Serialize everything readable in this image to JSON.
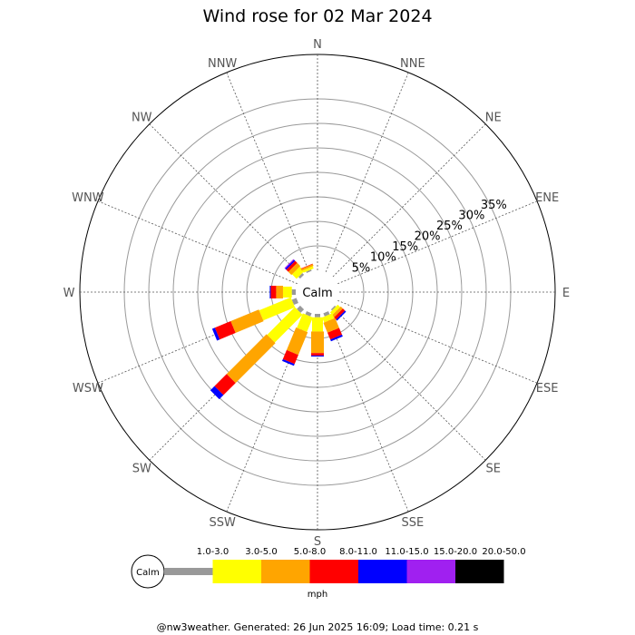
{
  "chart_data": {
    "type": "wind-rose",
    "title": "Wind rose for 02 Mar 2024",
    "directions": [
      "N",
      "NNE",
      "NE",
      "ENE",
      "E",
      "ESE",
      "SE",
      "SSE",
      "S",
      "SSW",
      "SW",
      "WSW",
      "W",
      "WNW",
      "NW",
      "NNW"
    ],
    "rings": [
      5,
      10,
      15,
      20,
      25,
      30,
      35
    ],
    "ring_labels": [
      "5%",
      "10%",
      "15%",
      "20%",
      "25%",
      "30%",
      "35%"
    ],
    "ring_label_direction": "ENE",
    "calm_label": "Calm",
    "speed_bins": [
      {
        "label": "1.0-3.0",
        "color": "#999999"
      },
      {
        "label": "3.0-5.0",
        "color": "#ffff00"
      },
      {
        "label": "5.0-8.0",
        "color": "#ffa500"
      },
      {
        "label": "8.0-11.0",
        "color": "#ff0000"
      },
      {
        "label": "11.0-15.0",
        "color": "#0000ff"
      },
      {
        "label": "15.0-20.0",
        "color": "#a020f0"
      },
      {
        "label": "20.0-50.0",
        "color": "#000000"
      }
    ],
    "series": [
      {
        "direction": "N",
        "values": [
          0.0,
          0.0,
          0.0,
          0.0,
          0.0,
          0.0,
          0.0
        ]
      },
      {
        "direction": "NNE",
        "values": [
          0.0,
          0.0,
          0.0,
          0.0,
          0.0,
          0.0,
          0.0
        ]
      },
      {
        "direction": "NE",
        "values": [
          0.0,
          0.0,
          0.0,
          0.0,
          0.0,
          0.0,
          0.0
        ]
      },
      {
        "direction": "ENE",
        "values": [
          0.0,
          0.0,
          0.0,
          0.0,
          0.0,
          0.0,
          0.0
        ]
      },
      {
        "direction": "E",
        "values": [
          0.0,
          0.0,
          0.0,
          0.0,
          0.0,
          0.0,
          0.0
        ]
      },
      {
        "direction": "ESE",
        "values": [
          0.0,
          0.0,
          0.0,
          0.0,
          0.0,
          0.0,
          0.0
        ]
      },
      {
        "direction": "SE",
        "values": [
          0.3,
          0.7,
          0.6,
          0.6,
          0.3,
          0.0,
          0.0
        ]
      },
      {
        "direction": "SSE",
        "values": [
          0.7,
          1.1,
          2.2,
          1.5,
          0.4,
          0.0,
          0.0
        ]
      },
      {
        "direction": "S",
        "values": [
          0.7,
          2.9,
          4.4,
          0.5,
          0.2,
          0.0,
          0.0
        ]
      },
      {
        "direction": "SSW",
        "values": [
          0.7,
          3.2,
          5.0,
          2.0,
          0.4,
          0.0,
          0.0
        ]
      },
      {
        "direction": "SW",
        "values": [
          1.0,
          8.0,
          11.5,
          3.5,
          1.2,
          0.0,
          0.0
        ]
      },
      {
        "direction": "WSW",
        "values": [
          1.0,
          7.0,
          6.2,
          3.5,
          0.6,
          0.0,
          0.0
        ]
      },
      {
        "direction": "W",
        "values": [
          0.8,
          1.8,
          1.4,
          1.1,
          0.2,
          0.0,
          0.0
        ]
      },
      {
        "direction": "WNW",
        "values": [
          0.0,
          0.0,
          0.0,
          0.0,
          0.0,
          0.0,
          0.0
        ]
      },
      {
        "direction": "NW",
        "values": [
          0.5,
          1.3,
          0.9,
          0.6,
          0.3,
          0.2,
          0.0
        ]
      },
      {
        "direction": "NNW",
        "values": [
          0.3,
          0.5,
          0.4,
          0.1,
          0.0,
          0.0,
          0.0
        ]
      }
    ],
    "legend_unit": "mph",
    "legend_placement": "bottom",
    "grid": true
  },
  "footer": "@nw3weather. Generated: 26 Jun 2025 16:09; Load time: 0.21 s"
}
